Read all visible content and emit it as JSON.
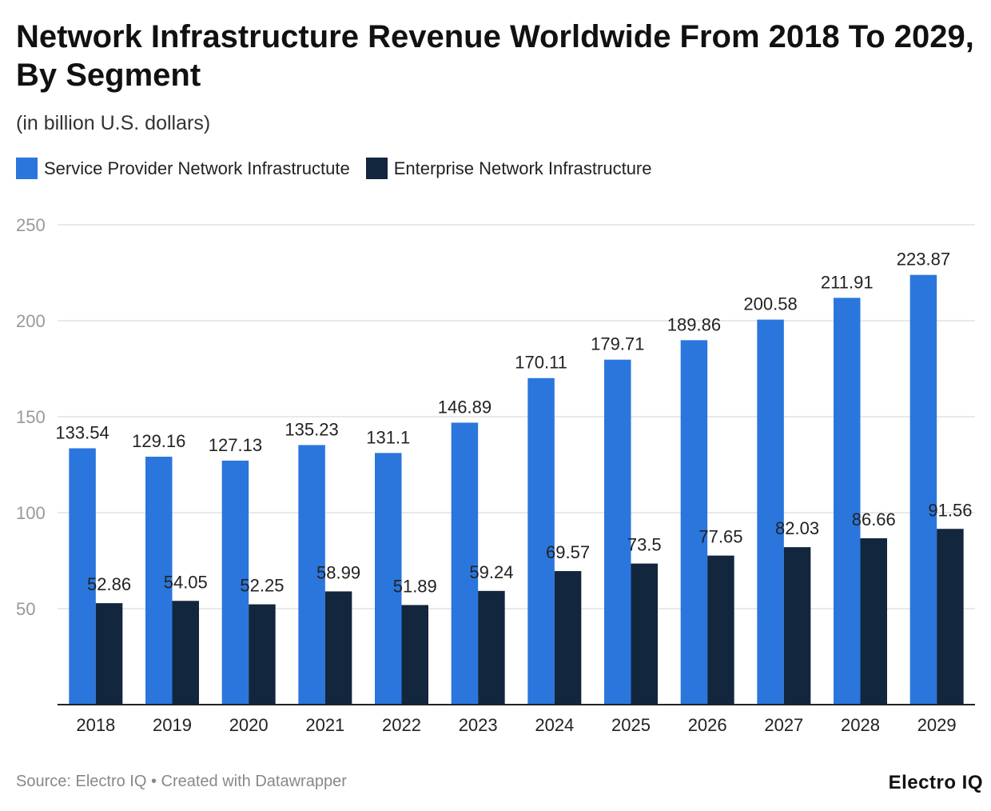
{
  "chart_data": {
    "type": "bar",
    "title": "Network Infrastructure Revenue Worldwide From 2018 To 2029, By Segment",
    "subtitle": "(in billion U.S. dollars)",
    "categories": [
      "2018",
      "2019",
      "2020",
      "2021",
      "2022",
      "2023",
      "2024",
      "2025",
      "2026",
      "2027",
      "2028",
      "2029"
    ],
    "series": [
      {
        "name": "Service Provider Network Infrastructute",
        "color": "#2a76dd",
        "values": [
          133.54,
          129.16,
          127.13,
          135.23,
          131.1,
          146.89,
          170.11,
          179.71,
          189.86,
          200.58,
          211.91,
          223.87
        ]
      },
      {
        "name": "Enterprise Network Infrastructure",
        "color": "#12263d",
        "values": [
          52.86,
          54.05,
          52.25,
          58.99,
          51.89,
          59.24,
          69.57,
          73.5,
          77.65,
          82.03,
          86.66,
          91.56
        ]
      }
    ],
    "ylim": [
      0,
      250
    ],
    "yticks": [
      50,
      100,
      150,
      200,
      250
    ],
    "grid": true,
    "legend_position": "top-left",
    "xlabel": "",
    "ylabel": ""
  },
  "footer": {
    "source": "Source: Electro IQ • Created with Datawrapper",
    "logo": "Electro IQ"
  }
}
